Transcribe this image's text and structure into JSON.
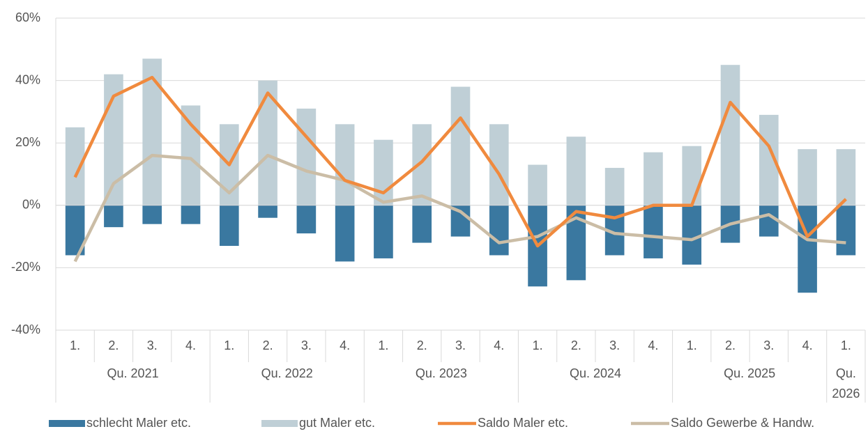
{
  "chart_data": {
    "type": "bar",
    "category_groups": [
      {
        "label": "Qu. 2021",
        "categories": [
          "1.",
          "2.",
          "3.",
          "4."
        ]
      },
      {
        "label": "Qu. 2022",
        "categories": [
          "1.",
          "2.",
          "3.",
          "4."
        ]
      },
      {
        "label": "Qu. 2023",
        "categories": [
          "1.",
          "2.",
          "3.",
          "4."
        ]
      },
      {
        "label": "Qu. 2024",
        "categories": [
          "1.",
          "2.",
          "3.",
          "4."
        ]
      },
      {
        "label": "Qu. 2025",
        "categories": [
          "1.",
          "2.",
          "3.",
          "4."
        ]
      },
      {
        "label": "Qu. 2026",
        "categories": [
          "1."
        ]
      }
    ],
    "series": [
      {
        "name": "schlecht Maler etc.",
        "type": "bar",
        "color": "#3a78a0",
        "values": [
          -16,
          -7,
          -6,
          -6,
          -13,
          -4,
          -9,
          -18,
          -17,
          -12,
          -10,
          -16,
          -26,
          -24,
          -16,
          -17,
          -19,
          -12,
          -10,
          -28,
          -16
        ]
      },
      {
        "name": "gut Maler etc.",
        "type": "bar",
        "color": "#bfcfd6",
        "values": [
          25,
          42,
          47,
          32,
          26,
          40,
          31,
          26,
          21,
          26,
          38,
          26,
          13,
          22,
          12,
          17,
          19,
          45,
          29,
          18,
          18
        ]
      },
      {
        "name": "Saldo Maler etc.",
        "type": "line",
        "color": "#f08a3e",
        "values": [
          9,
          35,
          41,
          26,
          13,
          36,
          22,
          8,
          4,
          14,
          28,
          10,
          -13,
          -2,
          -4,
          0,
          0,
          33,
          19,
          -10,
          2
        ]
      },
      {
        "name": "Saldo Gewerbe & Handw.",
        "type": "line",
        "color": "#cbbda6",
        "values": [
          -18,
          7,
          16,
          15,
          4,
          16,
          11,
          8,
          1,
          3,
          -2,
          -12,
          -10,
          -4,
          -9,
          -10,
          -11,
          -6,
          -3,
          -11,
          -12
        ]
      }
    ],
    "ylim": [
      -40,
      60
    ],
    "yticks": [
      {
        "value": -40,
        "label": "-40%"
      },
      {
        "value": -20,
        "label": "-20%"
      },
      {
        "value": 0,
        "label": "0%"
      },
      {
        "value": 20,
        "label": "20%"
      },
      {
        "value": 40,
        "label": "40%"
      },
      {
        "value": 60,
        "label": "60%"
      }
    ],
    "grid": true,
    "legend": "bottom"
  }
}
